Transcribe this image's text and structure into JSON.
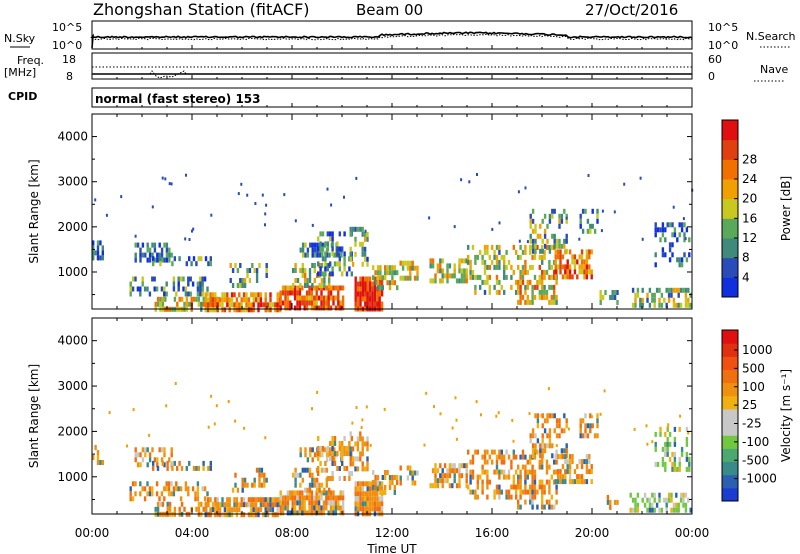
{
  "header": {
    "station": "Zhongshan Station (fitACF)",
    "beam": "Beam 00",
    "date": "27/Oct/2016"
  },
  "strip_labels": {
    "nsky": "N.Sky",
    "nsky_top": "10^5",
    "nsky_bottom": "10^0",
    "nsearch": "N.Search",
    "nsearch_top": "10^5",
    "nsearch_bottom": "10^0",
    "freq": "Freq.",
    "freq_unit": "[MHz]",
    "freq_top": "18",
    "freq_bottom": "8",
    "nave": "Nave",
    "nave_top": "60",
    "nave_bottom": "0",
    "cpid": "CPID",
    "mode": "normal (fast stereo) 153"
  },
  "chart_data": [
    {
      "type": "heatmap",
      "name": "power",
      "ylabel": "Slant Range [km]",
      "ylim": [
        180,
        4500
      ],
      "yticks": [
        "1000",
        "2000",
        "3000",
        "4000"
      ],
      "ytick_values": [
        1000,
        2000,
        3000,
        4000
      ],
      "xlim": [
        0,
        24
      ],
      "xticks": [
        "00:00",
        "04:00",
        "08:00",
        "12:00",
        "16:00",
        "20:00",
        "00:00"
      ],
      "colorbar": {
        "label": "Power [dB]",
        "ticks": [
          "4",
          "8",
          "12",
          "16",
          "20",
          "24",
          "28"
        ],
        "colors": [
          "#1030e0",
          "#2a4cb8",
          "#3f8a7a",
          "#5aa85a",
          "#c8c820",
          "#f0a000",
          "#f07000",
          "#e04010",
          "#e01010"
        ]
      }
    },
    {
      "type": "heatmap",
      "name": "velocity",
      "ylabel": "Slant Range [km]",
      "ylim": [
        180,
        4500
      ],
      "yticks": [
        "1000",
        "2000",
        "3000",
        "4000"
      ],
      "ytick_values": [
        1000,
        2000,
        3000,
        4000
      ],
      "xlim": [
        0,
        24
      ],
      "xticks": [
        "00:00",
        "04:00",
        "08:00",
        "12:00",
        "16:00",
        "20:00",
        "00:00"
      ],
      "xlabel": "Time UT",
      "colorbar": {
        "label": "Velocity [m s⁻¹]",
        "ticks": [
          "1000",
          "500",
          "100",
          "25",
          "-25",
          "-100",
          "-500",
          "-1000"
        ],
        "colors": [
          "#1a3cd0",
          "#2a60b0",
          "#3a8a8a",
          "#4aa870",
          "#70c840",
          "#c8c8c8",
          "#c8c8c8",
          "#f0b010",
          "#f09010",
          "#f07010",
          "#f05010",
          "#e03010",
          "#e01010"
        ]
      }
    }
  ],
  "scatter_blobs": [
    {
      "t0": 0.0,
      "t1": 0.4,
      "r0": 1350,
      "r1": 1700,
      "lvl": 0.15,
      "d": 0.6
    },
    {
      "t0": 1.7,
      "t1": 3.2,
      "r0": 1300,
      "r1": 1650,
      "lvl": 0.2,
      "d": 0.55
    },
    {
      "t0": 2.4,
      "t1": 4.8,
      "r0": 1150,
      "r1": 1350,
      "lvl": 0.3,
      "d": 0.45
    },
    {
      "t0": 1.5,
      "t1": 4.6,
      "r0": 500,
      "r1": 900,
      "lvl": 0.3,
      "d": 0.35
    },
    {
      "t0": 2.5,
      "t1": 5.0,
      "r0": 220,
      "r1": 450,
      "lvl": 0.55,
      "d": 0.55
    },
    {
      "t0": 4.5,
      "t1": 7.5,
      "r0": 200,
      "r1": 550,
      "lvl": 0.7,
      "d": 0.8
    },
    {
      "t0": 5.5,
      "t1": 7.0,
      "r0": 700,
      "r1": 1200,
      "lvl": 0.35,
      "d": 0.3
    },
    {
      "t0": 7.5,
      "t1": 10.0,
      "r0": 200,
      "r1": 700,
      "lvl": 0.8,
      "d": 0.85
    },
    {
      "t0": 8.0,
      "t1": 9.5,
      "r0": 700,
      "r1": 1200,
      "lvl": 0.45,
      "d": 0.5
    },
    {
      "t0": 8.3,
      "t1": 10.0,
      "r0": 1350,
      "r1": 1650,
      "lvl": 0.25,
      "d": 0.6
    },
    {
      "t0": 9.0,
      "t1": 10.4,
      "r0": 1000,
      "r1": 1900,
      "lvl": 0.3,
      "d": 0.4
    },
    {
      "t0": 10.5,
      "t1": 11.6,
      "r0": 200,
      "r1": 900,
      "lvl": 0.92,
      "d": 0.95
    },
    {
      "t0": 10.3,
      "t1": 11.0,
      "r0": 1200,
      "r1": 2000,
      "lvl": 0.35,
      "d": 0.45
    },
    {
      "t0": 11.2,
      "t1": 12.2,
      "r0": 650,
      "r1": 1150,
      "lvl": 0.5,
      "d": 0.6
    },
    {
      "t0": 12.3,
      "t1": 13.0,
      "r0": 900,
      "r1": 1250,
      "lvl": 0.5,
      "d": 0.55
    },
    {
      "t0": 13.5,
      "t1": 15.0,
      "r0": 850,
      "r1": 1300,
      "lvl": 0.5,
      "d": 0.55
    },
    {
      "t0": 15.0,
      "t1": 17.0,
      "r0": 550,
      "r1": 1600,
      "lvl": 0.45,
      "d": 0.45
    },
    {
      "t0": 17.0,
      "t1": 18.6,
      "r0": 300,
      "r1": 1600,
      "lvl": 0.55,
      "d": 0.5
    },
    {
      "t0": 17.5,
      "t1": 19.0,
      "r0": 1500,
      "r1": 2400,
      "lvl": 0.4,
      "d": 0.4
    },
    {
      "t0": 18.5,
      "t1": 20.0,
      "r0": 900,
      "r1": 1500,
      "lvl": 0.7,
      "d": 0.6
    },
    {
      "t0": 19.5,
      "t1": 20.2,
      "r0": 1850,
      "r1": 2400,
      "lvl": 0.25,
      "d": 0.5
    },
    {
      "t0": 20.3,
      "t1": 21.0,
      "r0": 300,
      "r1": 600,
      "lvl": 0.3,
      "d": 0.35
    },
    {
      "t0": 21.5,
      "t1": 23.9,
      "r0": 250,
      "r1": 650,
      "lvl": 0.4,
      "d": 0.55
    },
    {
      "t0": 22.5,
      "t1": 23.9,
      "r0": 1200,
      "r1": 2100,
      "lvl": 0.2,
      "d": 0.35
    }
  ]
}
